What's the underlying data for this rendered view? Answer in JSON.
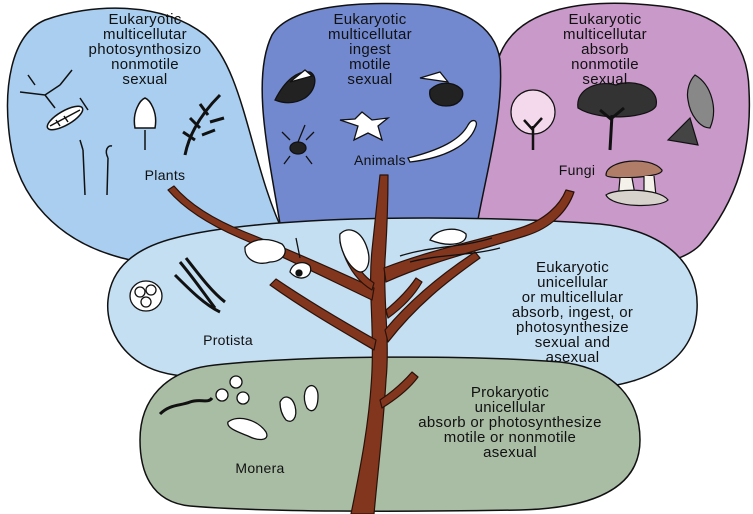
{
  "kingdoms": {
    "plants": {
      "name": "Plants",
      "traits": [
        "Eukaryotic",
        "multicellutar",
        "photosynthosizo",
        "nonmotile",
        "sexual"
      ],
      "color": "#a9cef0"
    },
    "animals": {
      "name": "Animals",
      "traits": [
        "Eukaryotic",
        "multicellutar",
        "ingest",
        "motile",
        "sexual"
      ],
      "color": "#7289cf"
    },
    "fungi": {
      "name": "Fungi",
      "traits": [
        "Eukaryotic",
        "multicellutar",
        "absorb",
        "nonmotile",
        "sexual"
      ],
      "color": "#c899c9"
    },
    "protista": {
      "name": "Protista",
      "traits": [
        "Eukaryotic",
        "unicellular",
        "or multicellular",
        "absorb, ingest, or",
        "photosynthesize",
        "sexual and",
        "asexual"
      ],
      "color": "#c4def2"
    },
    "monera": {
      "name": "Monera",
      "traits": [
        "Prokaryotic",
        "unicellular",
        "absorb or photosynthesize",
        "motile or nonmotile",
        "asexual"
      ],
      "color": "#a9bca4"
    }
  },
  "tree_color": "#83361e"
}
